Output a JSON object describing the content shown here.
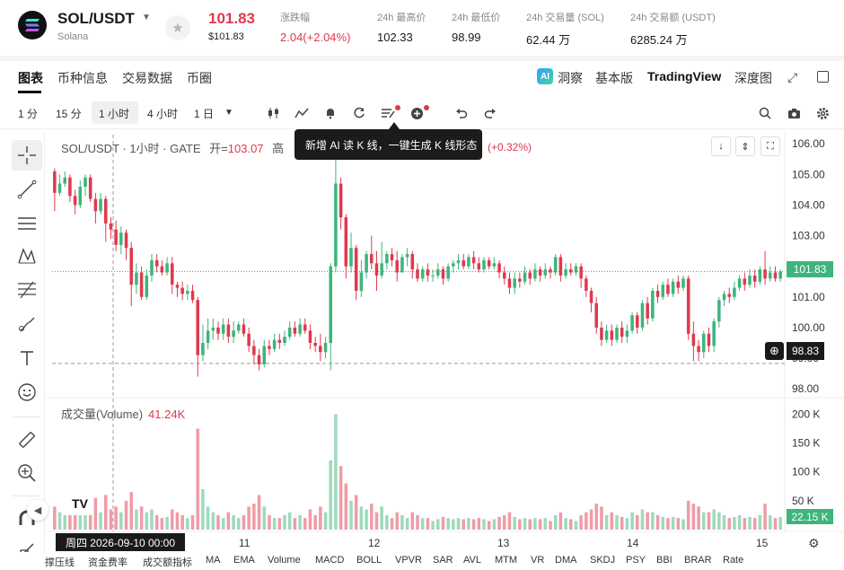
{
  "header": {
    "pair": "SOL/USDT",
    "pair_sub": "Solana",
    "price": "101.83",
    "price_usd": "$101.83",
    "stats": [
      {
        "label": "涨跌幅",
        "value": "2.04(+2.04%)",
        "red": true
      },
      {
        "label": "24h 最高价",
        "value": "102.33"
      },
      {
        "label": "24h 最低价",
        "value": "98.99"
      },
      {
        "label": "24h 交易量 (SOL)",
        "value": "62.44 万"
      },
      {
        "label": "24h 交易额 (USDT)",
        "value": "6285.24 万"
      }
    ]
  },
  "tabs": [
    "图表",
    "币种信息",
    "交易数据",
    "币圈"
  ],
  "right_tabs": {
    "insight": "洞察",
    "basic": "基本版",
    "tradingview": "TradingView",
    "depth": "深度图"
  },
  "timeframes": [
    "1 分",
    "15 分",
    "1 小时",
    "4 小时",
    "1 日"
  ],
  "legend": {
    "title": "SOL/USDT · 1小时 · GATE",
    "open_label": "开=",
    "open": "103.07",
    "high_label": "高",
    "change": "(+0.32%)"
  },
  "tooltip": "新增 AI 读 K 线，一键生成 K 线形态",
  "volume": {
    "label": "成交量(Volume)",
    "value": "41.24K",
    "tag": "22.15 K"
  },
  "y_axis": [
    "106.00",
    "105.00",
    "104.00",
    "103.00",
    "102.00",
    "101.00",
    "100.00",
    "99.00",
    "98.00"
  ],
  "price_tag": "101.83",
  "cross_tag": "98.83",
  "vol_axis": [
    "200 K",
    "150 K",
    "100 K",
    "50 K"
  ],
  "x_axis": [
    "11",
    "12",
    "13",
    "14",
    "15"
  ],
  "date_tag": "周四 2026-09-10    00:00",
  "indicators": [
    "撑压线",
    "资金费率",
    "成交额指标",
    "MA",
    "EMA",
    "Volume",
    "MACD",
    "BOLL",
    "VPVR",
    "SAR",
    "AVL",
    "MTM",
    "VR",
    "DMA",
    "SKDJ",
    "PSY",
    "BBI",
    "BRAR",
    "Rate"
  ],
  "colors": {
    "up": "#3db57c",
    "down": "#e0394f"
  },
  "chart_data": {
    "type": "candlestick",
    "interval": "1 小时",
    "ylim": [
      97.8,
      106.3
    ],
    "volume_lim": [
      0,
      210
    ],
    "candles": [
      [
        105.1,
        104.4,
        105.2,
        103.8,
        40
      ],
      [
        104.4,
        104.7,
        105.0,
        104.3,
        30
      ],
      [
        104.7,
        104.9,
        105.1,
        104.6,
        25
      ],
      [
        104.9,
        104.3,
        105.0,
        104.1,
        45
      ],
      [
        104.3,
        104.0,
        104.5,
        103.7,
        30
      ],
      [
        104.0,
        104.6,
        104.8,
        103.9,
        35
      ],
      [
        104.6,
        104.9,
        105.0,
        104.3,
        28
      ],
      [
        104.9,
        104.2,
        105.0,
        104.1,
        40
      ],
      [
        104.2,
        103.8,
        104.4,
        103.4,
        55
      ],
      [
        103.8,
        104.2,
        104.4,
        103.7,
        30
      ],
      [
        104.2,
        103.4,
        104.3,
        102.8,
        60
      ],
      [
        103.4,
        103.2,
        103.6,
        102.9,
        35
      ],
      [
        103.2,
        102.7,
        103.5,
        102.5,
        40
      ],
      [
        102.7,
        103.1,
        103.3,
        102.4,
        30
      ],
      [
        103.1,
        102.6,
        103.2,
        102.2,
        50
      ],
      [
        102.6,
        101.4,
        102.8,
        100.7,
        65
      ],
      [
        101.4,
        101.8,
        102.1,
        101.1,
        35
      ],
      [
        101.8,
        101.0,
        102.0,
        100.9,
        40
      ],
      [
        101.0,
        101.7,
        101.9,
        100.9,
        30
      ],
      [
        101.7,
        102.2,
        102.4,
        101.5,
        35
      ],
      [
        102.2,
        102.0,
        102.4,
        101.8,
        25
      ],
      [
        102.0,
        101.8,
        102.2,
        101.7,
        20
      ],
      [
        101.8,
        102.1,
        102.3,
        101.7,
        22
      ],
      [
        102.1,
        101.4,
        102.3,
        101.1,
        35
      ],
      [
        101.4,
        101.3,
        101.5,
        101.0,
        30
      ],
      [
        101.3,
        101.1,
        101.5,
        100.9,
        25
      ],
      [
        101.1,
        101.2,
        101.4,
        100.9,
        20
      ],
      [
        101.2,
        100.9,
        101.4,
        100.8,
        25
      ],
      [
        100.9,
        99.1,
        101.0,
        98.4,
        175
      ],
      [
        99.1,
        99.5,
        100.1,
        98.9,
        70
      ],
      [
        99.5,
        99.9,
        100.3,
        99.3,
        40
      ],
      [
        99.9,
        100.0,
        100.3,
        99.6,
        30
      ],
      [
        100.0,
        99.8,
        100.2,
        99.6,
        25
      ],
      [
        99.8,
        100.1,
        100.3,
        99.6,
        20
      ],
      [
        100.1,
        99.7,
        100.3,
        99.5,
        30
      ],
      [
        99.7,
        99.9,
        100.2,
        99.5,
        25
      ],
      [
        99.9,
        100.1,
        100.2,
        99.8,
        20
      ],
      [
        100.1,
        99.8,
        100.3,
        99.7,
        25
      ],
      [
        99.8,
        99.4,
        100.0,
        99.2,
        40
      ],
      [
        99.4,
        99.1,
        99.6,
        98.8,
        45
      ],
      [
        99.1,
        98.8,
        99.3,
        98.6,
        60
      ],
      [
        98.8,
        99.4,
        99.6,
        98.7,
        40
      ],
      [
        99.4,
        99.3,
        99.6,
        99.1,
        25
      ],
      [
        99.3,
        99.6,
        99.8,
        99.2,
        20
      ],
      [
        99.6,
        99.5,
        99.8,
        99.3,
        20
      ],
      [
        99.5,
        99.7,
        99.9,
        99.4,
        25
      ],
      [
        99.7,
        100.0,
        100.2,
        99.6,
        30
      ],
      [
        100.0,
        99.8,
        100.2,
        99.7,
        20
      ],
      [
        99.8,
        100.1,
        100.3,
        99.7,
        25
      ],
      [
        100.1,
        99.9,
        100.3,
        99.8,
        20
      ],
      [
        99.9,
        99.5,
        100.1,
        99.3,
        35
      ],
      [
        99.5,
        99.4,
        99.7,
        99.2,
        25
      ],
      [
        99.4,
        99.2,
        99.8,
        98.9,
        40
      ],
      [
        99.2,
        99.5,
        99.7,
        99.0,
        30
      ],
      [
        99.5,
        102.0,
        102.1,
        98.6,
        120
      ],
      [
        102.0,
        104.7,
        106.0,
        101.8,
        200
      ],
      [
        104.7,
        103.6,
        104.9,
        103.2,
        110
      ],
      [
        103.6,
        102.0,
        103.7,
        101.6,
        80
      ],
      [
        102.0,
        102.6,
        103.1,
        101.8,
        50
      ],
      [
        102.6,
        101.2,
        102.7,
        100.9,
        60
      ],
      [
        101.2,
        101.8,
        102.2,
        101.0,
        40
      ],
      [
        101.8,
        102.4,
        102.5,
        101.6,
        35
      ],
      [
        102.4,
        102.1,
        103.0,
        101.9,
        45
      ],
      [
        102.1,
        101.7,
        102.5,
        101.2,
        30
      ],
      [
        101.7,
        102.1,
        102.8,
        101.6,
        40
      ],
      [
        102.1,
        102.4,
        102.5,
        101.9,
        25
      ],
      [
        102.4,
        102.2,
        102.6,
        102.0,
        20
      ],
      [
        102.2,
        101.8,
        102.5,
        101.5,
        30
      ],
      [
        101.8,
        102.3,
        102.4,
        101.8,
        25
      ],
      [
        102.3,
        102.4,
        102.6,
        102.0,
        20
      ],
      [
        102.4,
        101.9,
        102.5,
        101.6,
        30
      ],
      [
        101.9,
        101.6,
        102.1,
        101.5,
        25
      ],
      [
        101.6,
        101.9,
        102.0,
        101.5,
        20
      ],
      [
        101.9,
        101.7,
        102.1,
        101.5,
        20
      ],
      [
        101.7,
        101.7,
        101.9,
        101.5,
        15
      ],
      [
        101.7,
        101.9,
        102.1,
        101.6,
        18
      ],
      [
        101.9,
        101.6,
        102.0,
        101.4,
        22
      ],
      [
        101.6,
        102.0,
        102.1,
        101.5,
        20
      ],
      [
        102.0,
        102.1,
        102.2,
        101.8,
        18
      ],
      [
        102.1,
        102.2,
        102.4,
        101.9,
        20
      ],
      [
        102.2,
        102.0,
        102.4,
        101.9,
        18
      ],
      [
        102.0,
        102.3,
        102.4,
        101.9,
        20
      ],
      [
        102.3,
        102.1,
        102.5,
        101.9,
        18
      ],
      [
        102.1,
        101.9,
        102.3,
        101.8,
        20
      ],
      [
        101.9,
        102.2,
        102.3,
        101.8,
        18
      ],
      [
        102.2,
        102.0,
        102.3,
        101.9,
        15
      ],
      [
        102.0,
        102.1,
        102.3,
        101.9,
        18
      ],
      [
        102.1,
        101.8,
        102.2,
        101.6,
        22
      ],
      [
        101.8,
        101.6,
        102.0,
        101.4,
        25
      ],
      [
        101.6,
        101.3,
        101.8,
        101.1,
        30
      ],
      [
        101.3,
        101.6,
        101.8,
        101.1,
        22
      ],
      [
        101.6,
        101.5,
        101.8,
        101.3,
        18
      ],
      [
        101.5,
        101.8,
        102.0,
        101.4,
        20
      ],
      [
        101.8,
        101.6,
        101.9,
        101.4,
        18
      ],
      [
        101.6,
        101.9,
        102.1,
        101.5,
        20
      ],
      [
        101.9,
        101.7,
        102.0,
        101.5,
        18
      ],
      [
        101.7,
        101.9,
        102.1,
        101.6,
        20
      ],
      [
        101.9,
        101.8,
        102.0,
        101.6,
        15
      ],
      [
        101.8,
        102.3,
        102.4,
        101.7,
        25
      ],
      [
        102.3,
        101.7,
        102.4,
        101.5,
        30
      ],
      [
        101.7,
        101.9,
        102.1,
        101.6,
        20
      ],
      [
        101.9,
        101.8,
        102.1,
        101.7,
        18
      ],
      [
        101.8,
        102.0,
        102.1,
        101.7,
        15
      ],
      [
        102.0,
        101.6,
        102.1,
        101.3,
        25
      ],
      [
        101.6,
        101.2,
        101.7,
        101.0,
        30
      ],
      [
        101.2,
        100.8,
        101.3,
        100.5,
        35
      ],
      [
        100.8,
        100.0,
        101.0,
        99.8,
        45
      ],
      [
        100.0,
        99.6,
        100.2,
        99.4,
        40
      ],
      [
        99.6,
        99.9,
        100.1,
        99.5,
        25
      ],
      [
        99.9,
        99.6,
        100.1,
        99.4,
        30
      ],
      [
        99.6,
        100.0,
        100.1,
        99.5,
        25
      ],
      [
        100.0,
        99.7,
        100.2,
        99.5,
        22
      ],
      [
        99.7,
        99.9,
        100.1,
        99.5,
        20
      ],
      [
        99.9,
        100.4,
        100.5,
        99.8,
        30
      ],
      [
        100.4,
        100.0,
        100.5,
        99.8,
        25
      ],
      [
        100.0,
        100.8,
        100.9,
        99.9,
        35
      ],
      [
        100.8,
        100.3,
        101.0,
        100.1,
        30
      ],
      [
        100.3,
        101.2,
        101.3,
        100.2,
        30
      ],
      [
        101.2,
        101.0,
        101.4,
        100.8,
        25
      ],
      [
        101.0,
        101.4,
        101.5,
        100.9,
        22
      ],
      [
        101.4,
        101.1,
        101.6,
        101.0,
        20
      ],
      [
        101.1,
        101.5,
        101.6,
        101.0,
        22
      ],
      [
        101.5,
        101.3,
        101.7,
        101.1,
        20
      ],
      [
        101.3,
        101.6,
        101.7,
        101.2,
        18
      ],
      [
        101.6,
        99.8,
        101.7,
        99.6,
        50
      ],
      [
        99.8,
        99.4,
        100.2,
        98.9,
        45
      ],
      [
        99.4,
        99.2,
        99.6,
        98.9,
        40
      ],
      [
        99.2,
        99.8,
        99.9,
        99.0,
        30
      ],
      [
        99.8,
        99.4,
        100.0,
        99.2,
        30
      ],
      [
        99.4,
        100.2,
        100.3,
        99.2,
        35
      ],
      [
        100.2,
        100.9,
        101.0,
        100.0,
        30
      ],
      [
        100.9,
        101.1,
        101.2,
        100.7,
        25
      ],
      [
        101.1,
        101.0,
        101.3,
        100.8,
        20
      ],
      [
        101.0,
        101.3,
        101.5,
        100.9,
        22
      ],
      [
        101.3,
        101.6,
        101.7,
        101.2,
        25
      ],
      [
        101.6,
        101.4,
        101.8,
        101.2,
        20
      ],
      [
        101.4,
        101.7,
        101.9,
        101.3,
        22
      ],
      [
        101.7,
        101.5,
        101.9,
        101.3,
        20
      ],
      [
        101.5,
        101.9,
        102.0,
        101.4,
        25
      ],
      [
        101.9,
        101.6,
        102.5,
        101.4,
        45
      ],
      [
        101.6,
        101.8,
        102.0,
        101.5,
        25
      ],
      [
        101.8,
        101.6,
        102.0,
        101.5,
        20
      ],
      [
        101.6,
        101.83,
        101.9,
        101.5,
        22
      ]
    ]
  }
}
